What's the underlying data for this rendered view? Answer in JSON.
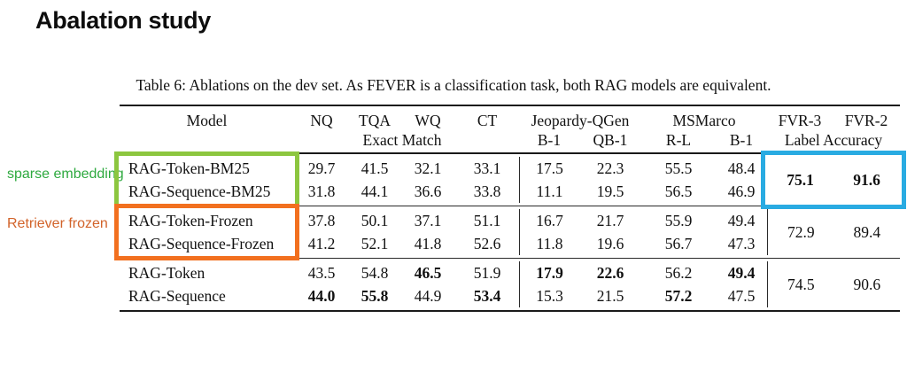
{
  "slide": {
    "title": "Abalation study"
  },
  "annotations": {
    "sparse_label": "sparse embedding",
    "frozen_label": "Retriever frozen",
    "colors": {
      "green_box": "#8cc63f",
      "green_text": "#2ea93f",
      "orange_box": "#f2701f",
      "orange_text": "#d2632a",
      "blue_box": "#29abe2"
    }
  },
  "table": {
    "caption": "Table 6: Ablations on the dev set. As FEVER is a classification task, both RAG models are equivalent.",
    "header": {
      "model": "Model",
      "nq": "NQ",
      "tqa": "TQA",
      "wq": "WQ",
      "ct": "CT",
      "exact_match": "Exact Match",
      "jeopardy": "Jeopardy-QGen",
      "jeop_b1": "B-1",
      "jeop_qb1": "QB-1",
      "msmarco": "MSMarco",
      "msm_rl": "R-L",
      "msm_b1": "B-1",
      "fvr3": "FVR-3",
      "fvr2": "FVR-2",
      "label_accuracy": "Label Accuracy"
    },
    "blocks": [
      {
        "models": [
          "RAG-Token-BM25",
          "RAG-Sequence-BM25"
        ],
        "rows": [
          [
            "29.7",
            "41.5",
            "32.1",
            "33.1",
            "17.5",
            "22.3",
            "55.5",
            "48.4"
          ],
          [
            "31.8",
            "44.1",
            "36.6",
            "33.8",
            "11.1",
            "19.5",
            "56.5",
            "46.9"
          ]
        ],
        "fvr": [
          "75.1",
          "91.6"
        ],
        "fvr_bold": true,
        "highlight": "green-box around model names, blue-box around FVR values"
      },
      {
        "models": [
          "RAG-Token-Frozen",
          "RAG-Sequence-Frozen"
        ],
        "rows": [
          [
            "37.8",
            "50.1",
            "37.1",
            "51.1",
            "16.7",
            "21.7",
            "55.9",
            "49.4"
          ],
          [
            "41.2",
            "52.1",
            "41.8",
            "52.6",
            "11.8",
            "19.6",
            "56.7",
            "47.3"
          ]
        ],
        "fvr": [
          "72.9",
          "89.4"
        ],
        "fvr_bold": false,
        "highlight": "orange-box around model names"
      },
      {
        "models": [
          "RAG-Token",
          "RAG-Sequence"
        ],
        "rows": [
          [
            "43.5",
            "54.8",
            "46.5",
            "51.9",
            "17.9",
            "22.6",
            "56.2",
            "49.4"
          ],
          [
            "44.0",
            "55.8",
            "44.9",
            "53.4",
            "15.3",
            "21.5",
            "57.2",
            "47.5"
          ]
        ],
        "fvr": [
          "74.5",
          "90.6"
        ],
        "fvr_bold": false,
        "bold_cells_row0": [
          "46.5",
          "17.9",
          "22.6",
          "49.4"
        ],
        "bold_cells_row1": [
          "44.0",
          "55.8",
          "53.4",
          "57.2"
        ]
      }
    ]
  }
}
